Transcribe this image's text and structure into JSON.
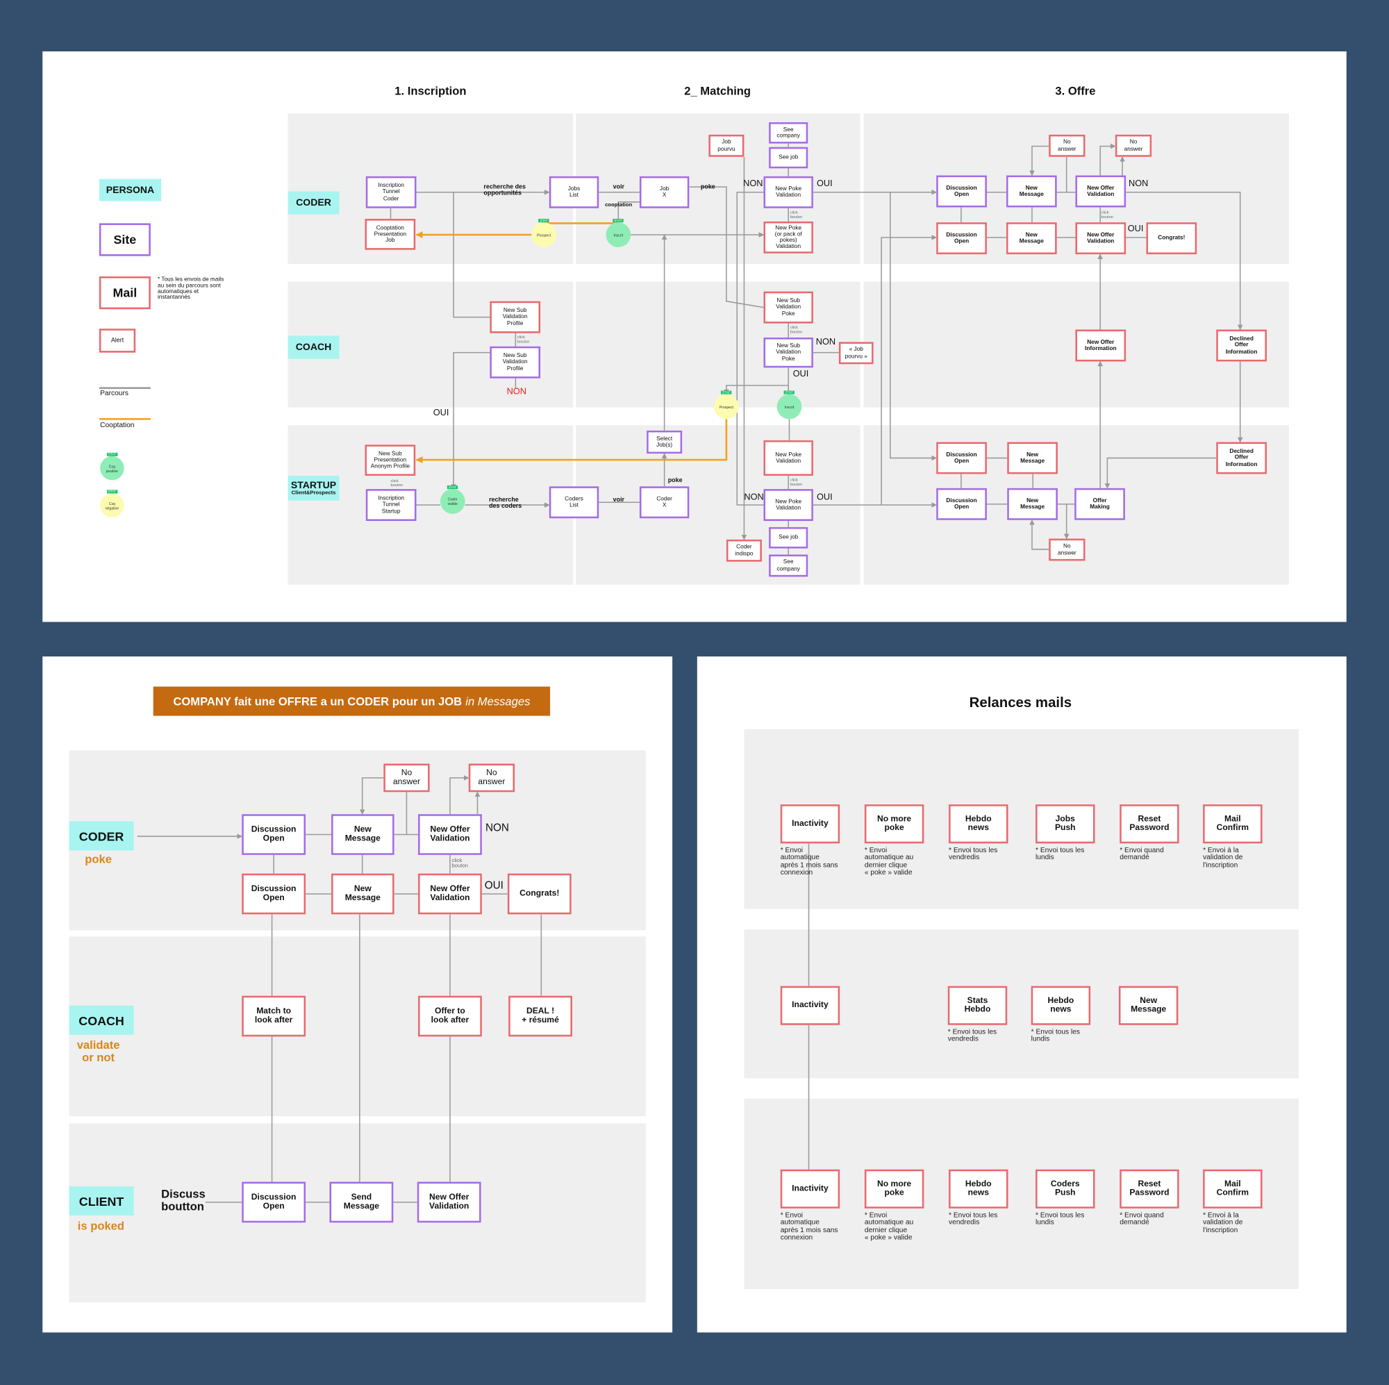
{
  "colors": {
    "background": "#344f6e",
    "site": "#a46be6",
    "mail": "#e8696e",
    "persona": "#a8f4f0",
    "lane": "#efefef",
    "parcours": "#999999",
    "cooptation": "#f0a020",
    "header": "#c46a10",
    "etat_positive": "#8eedb5",
    "etat_negative": "#fdfbb0",
    "non_red": "#e0201e"
  },
  "top": {
    "columns": [
      "1. Inscription",
      "2_ Matching",
      "3. Offre"
    ],
    "personas": [
      {
        "name": "CODER",
        "sub": ""
      },
      {
        "name": "COACH",
        "sub": ""
      },
      {
        "name": "STARTUP",
        "sub": "Client&Prospects"
      }
    ],
    "legend": {
      "persona": "PERSONA",
      "site": "Site",
      "mail": "Mail",
      "mail_note": "* Tous les envois de mails\nau sein du parcours sont\nautomatiques et\ninstantannés",
      "alert": "Alert",
      "parcours": "Parcours",
      "cooptation": "Cooptation",
      "etat_positive": {
        "badge": "ETAT",
        "text": "Csq\npositive"
      },
      "etat_negative": {
        "badge": "ETAT",
        "text": "Csq\nnégative"
      }
    },
    "nodes": [
      {
        "text": "Inscription\nTunnel\nCoder",
        "kind": "site"
      },
      {
        "text": "Cooptation\nPresentation\nJob",
        "kind": "mail"
      },
      {
        "text": "Jobs\nList",
        "kind": "site"
      },
      {
        "text": "Job\nX",
        "kind": "site"
      },
      {
        "text": "Job\npourvu",
        "kind": "mail"
      },
      {
        "text": "See\ncompany",
        "kind": "site"
      },
      {
        "text": "See job",
        "kind": "site"
      },
      {
        "text": "New Poke\nValidation",
        "kind": "site"
      },
      {
        "text": "New Poke\n(or pack of pokes)\nValidation",
        "kind": "mail"
      },
      {
        "text": "New Sub\nValidation\nPoke",
        "kind": "mail"
      },
      {
        "text": "New Sub\nValidation\nPoke",
        "kind": "site"
      },
      {
        "text": "« Job\npourvu »",
        "kind": "mail"
      },
      {
        "text": "New Sub\nValidation\nProfile",
        "kind": "mail"
      },
      {
        "text": "New Sub\nValidation\nProfile",
        "kind": "site"
      },
      {
        "text": "New Sub\nPresentation\nAnonym Profile",
        "kind": "mail"
      },
      {
        "text": "Inscription\nTunnel\nStartup",
        "kind": "site"
      },
      {
        "text": "Coders\nList",
        "kind": "site"
      },
      {
        "text": "Coder\nX",
        "kind": "site"
      },
      {
        "text": "Select\nJob(s)",
        "kind": "site"
      },
      {
        "text": "New Poke\nValidation",
        "kind": "mail"
      },
      {
        "text": "New Poke\nValidation",
        "kind": "site"
      },
      {
        "text": "See job",
        "kind": "site"
      },
      {
        "text": "See\ncompany",
        "kind": "site"
      },
      {
        "text": "Coder\nindispo",
        "kind": "mail"
      },
      {
        "text": "Discussion\nOpen",
        "kind": "site"
      },
      {
        "text": "Discussion\nOpen",
        "kind": "mail"
      },
      {
        "text": "New\nMessage",
        "kind": "site"
      },
      {
        "text": "New\nMessage",
        "kind": "mail"
      },
      {
        "text": "No\nanswer",
        "kind": "mail"
      },
      {
        "text": "New Offer\nValidation",
        "kind": "site"
      },
      {
        "text": "No\nanswer",
        "kind": "mail"
      },
      {
        "text": "New Offer\nValidation",
        "kind": "mail"
      },
      {
        "text": "Congrats!",
        "kind": "mail"
      },
      {
        "text": "New Offer\nInformation",
        "kind": "mail"
      },
      {
        "text": "Declined\nOffer\nInformation",
        "kind": "mail"
      },
      {
        "text": "Declined\nOffer\nInformation",
        "kind": "mail"
      },
      {
        "text": "Discussion\nOpen",
        "kind": "mail"
      },
      {
        "text": "New\nMessage",
        "kind": "mail"
      },
      {
        "text": "Discussion\nOpen",
        "kind": "site"
      },
      {
        "text": "New\nMessage",
        "kind": "site"
      },
      {
        "text": "Offer\nMaking",
        "kind": "site"
      },
      {
        "text": "No\nanswer",
        "kind": "mail"
      }
    ],
    "etats": [
      {
        "badge": "ETAT",
        "text": "Prospect",
        "kind": "negative"
      },
      {
        "badge": "ETAT",
        "text": "Inscrit",
        "kind": "positive"
      },
      {
        "badge": "ETAT",
        "text": "Prospect",
        "kind": "negative"
      },
      {
        "badge": "ETAT",
        "text": "Inscrit",
        "kind": "positive"
      },
      {
        "badge": "ETAT",
        "text": "Coder\nvisible",
        "kind": "positive"
      }
    ],
    "labels": [
      {
        "text": "recherche des\nopportunités",
        "style": "bold"
      },
      {
        "text": "voir",
        "style": "bold"
      },
      {
        "text": "cooptation",
        "style": "bold"
      },
      {
        "text": "poke",
        "style": "bold"
      },
      {
        "text": "NON",
        "style": "plain"
      },
      {
        "text": "OUI",
        "style": "plain"
      },
      {
        "text": "click\nbouton",
        "style": "tiny"
      },
      {
        "text": "click\nbouton",
        "style": "tiny"
      },
      {
        "text": "NON",
        "style": "plain"
      },
      {
        "text": "OUI",
        "style": "plain"
      },
      {
        "text": "click\nbouton",
        "style": "tiny"
      },
      {
        "text": "NON",
        "style": "red"
      },
      {
        "text": "OUI",
        "style": "plain"
      },
      {
        "text": "click\nbouton",
        "style": "tiny"
      },
      {
        "text": "recherche\ndes coders",
        "style": "bold"
      },
      {
        "text": "voir",
        "style": "bold"
      },
      {
        "text": "poke",
        "style": "bold"
      },
      {
        "text": "click\nbouton",
        "style": "tiny"
      },
      {
        "text": "NON",
        "style": "plain"
      },
      {
        "text": "OUI",
        "style": "plain"
      },
      {
        "text": "NON",
        "style": "plain"
      },
      {
        "text": "OUI",
        "style": "plain"
      },
      {
        "text": "click\nbouton",
        "style": "tiny"
      }
    ]
  },
  "offer": {
    "title_main": "COMPANY fait une OFFRE a un CODER pour un JOB",
    "title_em": "in Messages",
    "personas": [
      {
        "name": "CODER",
        "sub": "poke"
      },
      {
        "name": "COACH",
        "sub": "validate\nor not"
      },
      {
        "name": "CLIENT",
        "sub": "is poked"
      }
    ],
    "discuss_label": "Discuss\nboutton",
    "nodes": [
      {
        "text": "Discussion\nOpen",
        "kind": "site"
      },
      {
        "text": "New\nMessage",
        "kind": "site"
      },
      {
        "text": "New Offer\nValidation",
        "kind": "site"
      },
      {
        "text": "No\nanswer",
        "kind": "mail"
      },
      {
        "text": "No\nanswer",
        "kind": "mail"
      },
      {
        "text": "Discussion\nOpen",
        "kind": "mail"
      },
      {
        "text": "New\nMessage",
        "kind": "mail"
      },
      {
        "text": "New Offer\nValidation",
        "kind": "mail"
      },
      {
        "text": "Congrats!",
        "kind": "mail"
      },
      {
        "text": "Match to\nlook after",
        "kind": "mail"
      },
      {
        "text": "Offer to\nlook after",
        "kind": "mail"
      },
      {
        "text": "DEAL !\n+ résumé",
        "kind": "mail"
      },
      {
        "text": "Discussion\nOpen",
        "kind": "site"
      },
      {
        "text": "Send\nMessage",
        "kind": "site"
      },
      {
        "text": "New Offer\nValidation",
        "kind": "site"
      }
    ],
    "labels": [
      {
        "text": "NON"
      },
      {
        "text": "click\nbouton"
      },
      {
        "text": "OUI"
      }
    ]
  },
  "relances": {
    "title": "Relances mails",
    "nodes": [
      {
        "text": "Inactivity",
        "note": "* Envoi\nautomatique\naprès 1 mois sans\nconnexion"
      },
      {
        "text": "No more\npoke",
        "note": "* Envoi\nautomatique au\ndernier clique\n« poke » valide"
      },
      {
        "text": "Hebdo\nnews",
        "note": "* Envoi tous les\nvendredis"
      },
      {
        "text": "Jobs\nPush",
        "note": "* Envoi tous les\nlundis"
      },
      {
        "text": "Reset\nPassword",
        "note": "* Envoi quand\ndemandé"
      },
      {
        "text": "Mail\nConfirm",
        "note": "* Envoi à la\nvalidation de\nl'inscription"
      },
      {
        "text": "Inactivity",
        "note": ""
      },
      {
        "text": "Stats\nHebdo",
        "note": "* Envoi tous les\nvendredis"
      },
      {
        "text": "Hebdo\nnews",
        "note": "* Envoi tous les\nlundis"
      },
      {
        "text": "New\nMessage",
        "note": ""
      },
      {
        "text": "Inactivity",
        "note": "* Envoi\nautomatique\naprès 1 mois sans\nconnexion"
      },
      {
        "text": "No more\npoke",
        "note": "* Envoi\nautomatique au\ndernier clique\n« poke » valide"
      },
      {
        "text": "Hebdo\nnews",
        "note": "* Envoi tous les\nvendredis"
      },
      {
        "text": "Coders\nPush",
        "note": "* Envoi tous les\nlundis"
      },
      {
        "text": "Reset\nPassword",
        "note": "* Envoi quand\ndemandé"
      },
      {
        "text": "Mail\nConfirm",
        "note": "* Envoi à la\nvalidation de\nl'inscription"
      }
    ]
  }
}
